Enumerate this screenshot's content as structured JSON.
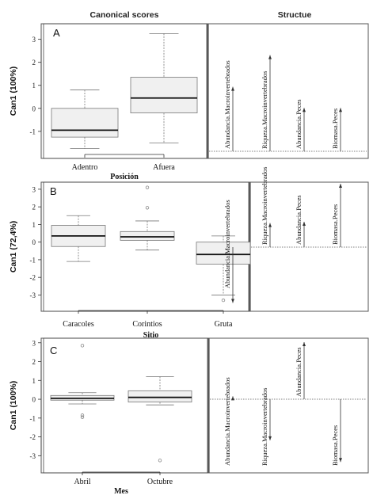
{
  "header": {
    "left_title": "Canonical scores",
    "right_title": "Structue"
  },
  "chart_data": [
    {
      "type": "box",
      "panel": "A",
      "ylabel": "Can1 (100%)",
      "xlabel": "Posición",
      "ylim": [
        -1.9,
        3.4
      ],
      "yticks": [
        "3",
        "2",
        "1",
        "0",
        "-1"
      ],
      "categories": [
        "Adentro",
        "Afuera"
      ],
      "boxes": [
        {
          "whisker_low": -1.75,
          "q1": -1.25,
          "median": -0.95,
          "q3": 0.0,
          "whisker_high": 0.8,
          "outliers": []
        },
        {
          "whisker_low": -1.5,
          "q1": -0.2,
          "median": 0.45,
          "q3": 1.35,
          "whisker_high": 3.25,
          "outliers": []
        }
      ],
      "structure": {
        "baseline": "bottom",
        "vectors": [
          {
            "label": "Abundancia.Macroinvertebrados",
            "value": 0.55
          },
          {
            "label": "Riqueza.Macroinvertebrados",
            "value": 0.82
          },
          {
            "label": "Abundancia.Peces",
            "value": 0.37
          },
          {
            "label": "Biomasa.Peces",
            "value": 0.37
          }
        ]
      }
    },
    {
      "type": "box",
      "panel": "B",
      "ylabel": "Can1 (72,4%)",
      "xlabel": "Sitio",
      "ylim": [
        -3.7,
        3.4
      ],
      "yticks": [
        "3",
        "2",
        "1",
        "0",
        "-1",
        "-2",
        "-3"
      ],
      "categories": [
        "Caracoles",
        "Corintios",
        "Gruta"
      ],
      "boxes": [
        {
          "whisker_low": -1.1,
          "q1": -0.25,
          "median": 0.35,
          "q3": 0.95,
          "whisker_high": 1.5,
          "outliers": []
        },
        {
          "whisker_low": -0.45,
          "q1": 0.1,
          "median": 0.3,
          "q3": 0.6,
          "whisker_high": 1.2,
          "outliers": [
            1.95,
            3.1
          ]
        },
        {
          "whisker_low": -3.0,
          "q1": -1.25,
          "median": -0.7,
          "q3": 0.0,
          "whisker_high": 0.35,
          "outliers": [
            -3.3
          ]
        }
      ],
      "structure": {
        "baseline": "middle",
        "vectors": [
          {
            "label": "Abundancia.Macroinvertebrados",
            "value": -0.88
          },
          {
            "label": "Riqueza.Macroinvertebrados",
            "value": 0.38
          },
          {
            "label": "Abundancia.Peces",
            "value": 0.4
          },
          {
            "label": "Biomasa.Peces",
            "value": 1.0
          }
        ]
      }
    },
    {
      "type": "box",
      "panel": "C",
      "ylabel": "Can1 (100%)",
      "xlabel": "Mes",
      "ylim": [
        -3.7,
        3.2
      ],
      "yticks": [
        "3",
        "2",
        "1",
        "0",
        "-1",
        "-2",
        "-3"
      ],
      "categories": [
        "Abril",
        "Octubre"
      ],
      "boxes": [
        {
          "whisker_low": -0.25,
          "q1": -0.05,
          "median": 0.05,
          "q3": 0.2,
          "whisker_high": 0.35,
          "outliers": [
            2.85,
            -0.85,
            -0.95
          ]
        },
        {
          "whisker_low": -0.3,
          "q1": -0.15,
          "median": 0.1,
          "q3": 0.45,
          "whisker_high": 1.2,
          "outliers": [
            -3.25
          ]
        }
      ],
      "structure": {
        "baseline": "middle",
        "vectors": [
          {
            "label": "Abundancia.Macroinvertebrados",
            "value": 0.05
          },
          {
            "label": "Riqueza.Macroinvertebrados",
            "value": -0.72
          },
          {
            "label": "Abundancia.Peces",
            "value": 1.0
          },
          {
            "label": "Biomasa.Peces",
            "value": -1.1
          }
        ]
      }
    }
  ]
}
